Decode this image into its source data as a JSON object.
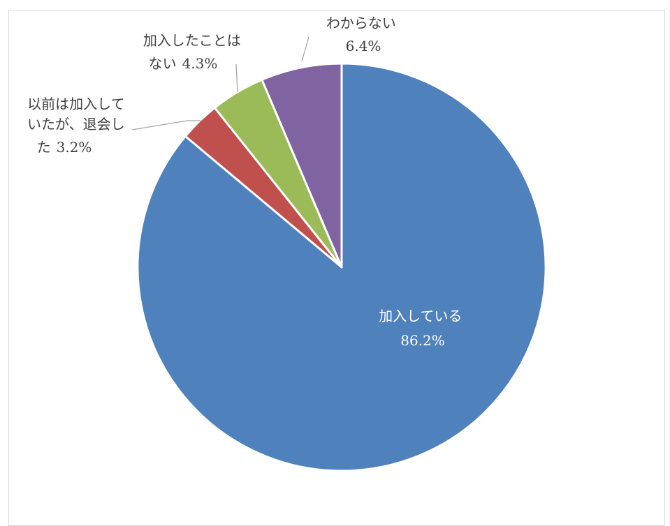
{
  "chart_data": {
    "type": "pie",
    "title": "",
    "start_angle_deg": 0,
    "direction": "clockwise",
    "slices": [
      {
        "label_lines": [
          "加入している"
        ],
        "value": 86.2,
        "value_label": "86.2%",
        "color": "#4F81BD",
        "label_position": "inside"
      },
      {
        "label_lines": [
          "以前は加入して",
          "いたが、退会し",
          "た"
        ],
        "value": 3.2,
        "value_label": "3.2%",
        "color": "#C0504D",
        "label_position": "outside"
      },
      {
        "label_lines": [
          "加入したことは",
          "ない"
        ],
        "value": 4.3,
        "value_label": "4.3%",
        "color": "#9BBB59",
        "label_position": "outside"
      },
      {
        "label_lines": [
          "わからない"
        ],
        "value": 6.4,
        "value_label": "6.4%",
        "color": "#8064A2",
        "label_position": "outside"
      }
    ],
    "legend": "none",
    "leader_line_color": "#A6A6A6"
  }
}
